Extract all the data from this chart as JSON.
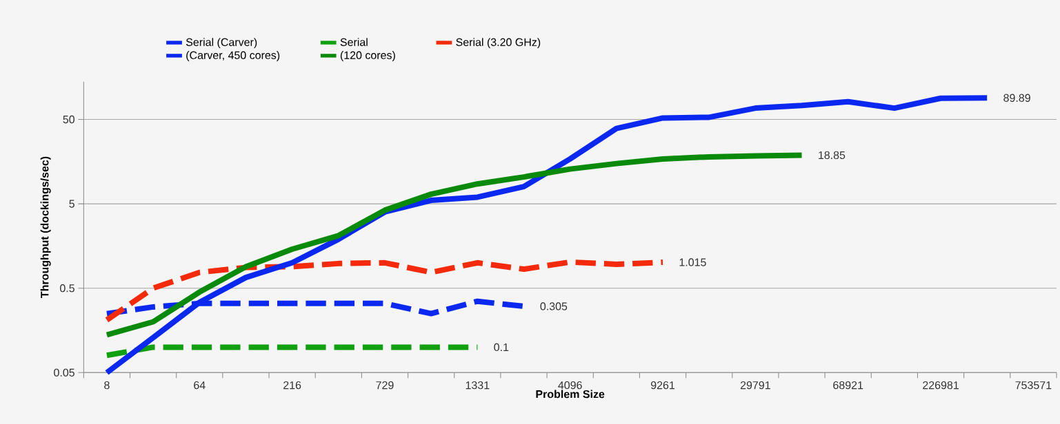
{
  "chart_data": {
    "type": "line",
    "xlabel": "Problem Size",
    "ylabel": "Throughput (dockings/sec)",
    "categories": [
      "8",
      null,
      "64",
      null,
      "216",
      null,
      "729",
      null,
      "1331",
      null,
      "4096",
      null,
      "9261",
      null,
      "29791",
      null,
      "68921",
      null,
      "226981",
      null,
      "753571"
    ],
    "log": "y",
    "ylim": [
      0.05,
      140
    ],
    "yticks": [
      0.05,
      0.5,
      5,
      50
    ],
    "grid": "y",
    "legend": "top",
    "series": [
      {
        "name": "Serial (Carver)",
        "color": "#0a28f0",
        "line_style": "dashed",
        "values": [
          0.25,
          0.3,
          0.33,
          0.33,
          0.33,
          0.33,
          0.33,
          0.25,
          0.35,
          0.305,
          null,
          null,
          null,
          null,
          null,
          null,
          null,
          null,
          null,
          null,
          null
        ],
        "value_labels": [
          null,
          null,
          null,
          null,
          null,
          null,
          null,
          null,
          null,
          "0.305",
          null,
          null,
          null,
          null,
          null,
          null,
          null,
          null,
          null,
          null,
          null
        ]
      },
      {
        "name": "Serial",
        "color": "#10a010",
        "line_style": "dashed",
        "values": [
          0.08,
          0.1,
          0.1,
          0.1,
          0.1,
          0.1,
          0.1,
          0.1,
          0.1,
          null,
          null,
          null,
          null,
          null,
          null,
          null,
          null,
          null,
          null,
          null,
          null
        ],
        "value_labels": [
          null,
          null,
          null,
          null,
          null,
          null,
          null,
          null,
          "0.1",
          null,
          null,
          null,
          null,
          null,
          null,
          null,
          null,
          null,
          null,
          null,
          null
        ]
      },
      {
        "name": "Serial (3.20 GHz)",
        "color": "#f52a0a",
        "line_style": "dashed",
        "values": [
          0.21,
          0.5,
          0.77,
          0.88,
          0.9,
          0.98,
          1.0,
          0.77,
          1.0,
          0.84,
          1.02,
          0.96,
          1.015,
          null,
          null,
          null,
          null,
          null,
          null,
          null,
          null
        ],
        "value_labels": [
          null,
          null,
          null,
          null,
          null,
          null,
          null,
          null,
          null,
          null,
          null,
          null,
          "1.015",
          null,
          null,
          null,
          null,
          null,
          null,
          null,
          null
        ]
      },
      {
        "name": "(Carver, 450 cores)",
        "color": "#0a28f0",
        "line_style": "solid",
        "values": [
          0.05,
          0.13,
          0.34,
          0.67,
          1.0,
          1.9,
          4.0,
          5.5,
          6.0,
          8.0,
          17,
          39,
          52,
          53,
          68,
          73,
          81,
          68,
          89,
          89.89,
          null
        ],
        "value_labels": [
          null,
          null,
          null,
          null,
          null,
          null,
          null,
          null,
          null,
          null,
          null,
          null,
          null,
          null,
          null,
          null,
          null,
          null,
          null,
          "89.89",
          null
        ]
      },
      {
        "name": "(120 cores)",
        "color": "#0a8a0a",
        "line_style": "solid",
        "values": [
          0.14,
          0.2,
          0.45,
          0.9,
          1.45,
          2.1,
          4.2,
          6.5,
          8.6,
          10.4,
          12.9,
          15,
          17,
          18,
          18.5,
          18.85,
          null,
          null,
          null,
          null,
          null
        ],
        "value_labels": [
          null,
          null,
          null,
          null,
          null,
          null,
          null,
          null,
          null,
          null,
          null,
          null,
          null,
          null,
          null,
          "18.85",
          null,
          null,
          null,
          null,
          null
        ]
      }
    ]
  }
}
